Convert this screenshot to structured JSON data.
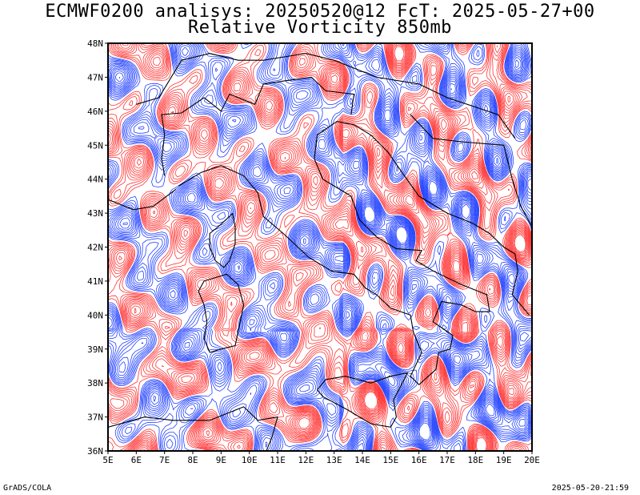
{
  "title": {
    "line1": "ECMWF0200 analisys: 20250520@12 FcT: 2025-05-27+00",
    "line2": "Relative Vorticity 850mb"
  },
  "map": {
    "lon_range": [
      5,
      20
    ],
    "lat_range": [
      36,
      48
    ],
    "lon_ticks": [
      "5E",
      "6E",
      "7E",
      "8E",
      "9E",
      "10E",
      "11E",
      "12E",
      "13E",
      "14E",
      "15E",
      "16E",
      "17E",
      "18E",
      "19E",
      "20E"
    ],
    "lat_ticks": [
      "36N",
      "37N",
      "38N",
      "39N",
      "40N",
      "41N",
      "42N",
      "43N",
      "44N",
      "45N",
      "46N",
      "47N",
      "48N"
    ],
    "positive_color": "#ff3333",
    "negative_color": "#2040ff",
    "border_color": "#000000"
  },
  "footer": {
    "credit": "GrADS/COLA",
    "timestamp": "2025-05-20-21:59"
  }
}
